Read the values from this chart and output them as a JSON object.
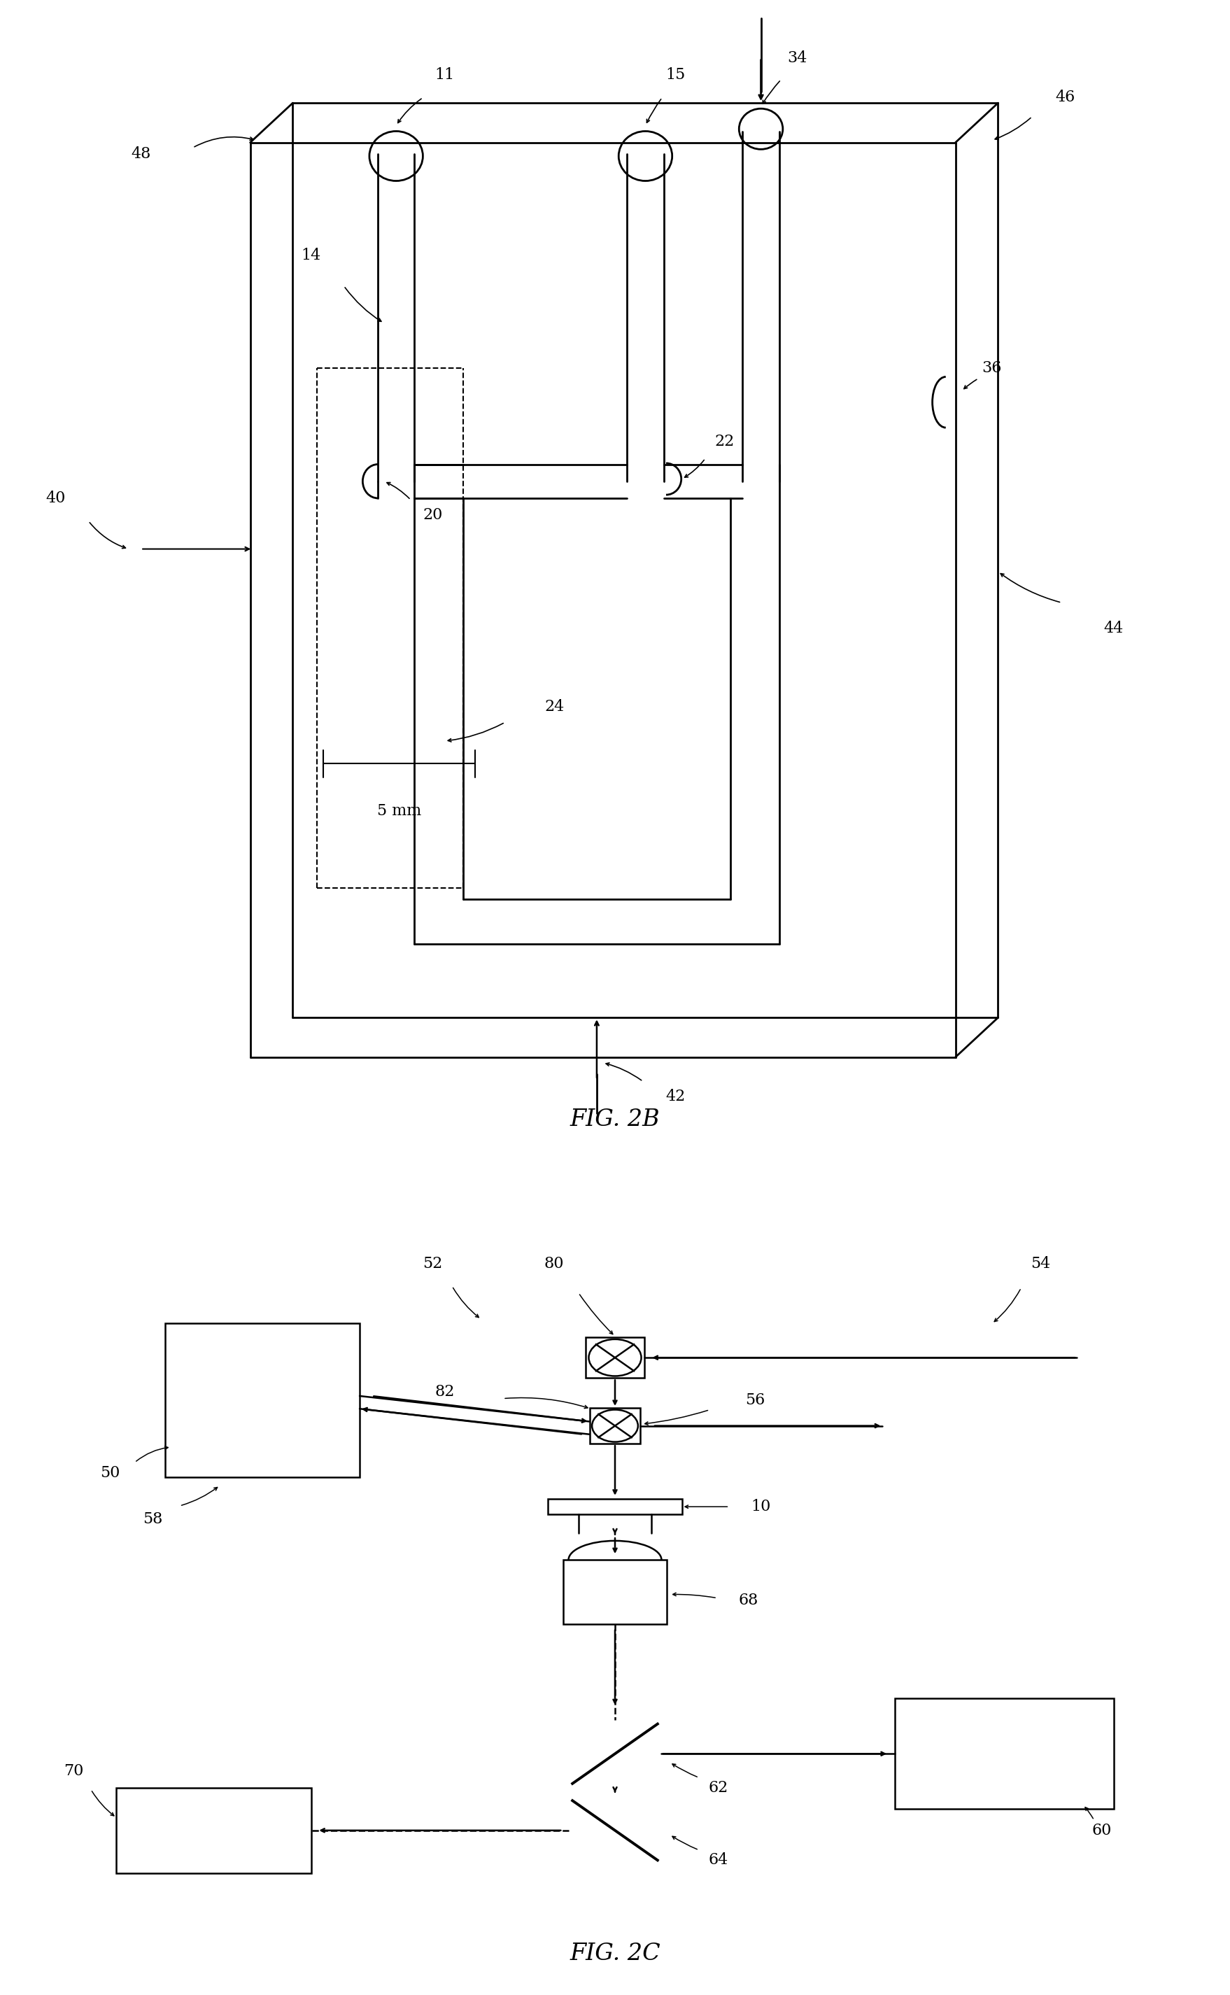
{
  "bg_color": "#ffffff",
  "lc": "#000000",
  "fig2b_caption": "FIG. 2B",
  "fig2c_caption": "FIG. 2C",
  "scale_label": "5 mm"
}
